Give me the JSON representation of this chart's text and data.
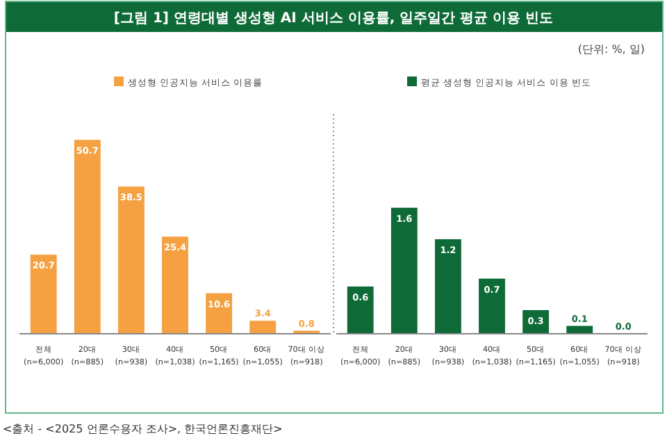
{
  "chart_data": [
    {
      "type": "bar",
      "title": "[그림 1] 연령대별 생성형 AI 서비스 이용률, 일주일간 평균 이용 빈도",
      "categories": [
        "전체\n(n=6,000)",
        "20대\n(n=885)",
        "30대\n(n=938)",
        "40대\n(n=1,038)",
        "50대\n(n=1,165)",
        "60대\n(n=1,055)",
        "70대 이상\n(n=918)"
      ],
      "series": [
        {
          "name": "생성형 인공지능 서비스 이용률",
          "color": "#f5a142",
          "values": [
            20.7,
            50.7,
            38.5,
            25.4,
            10.6,
            3.4,
            0.8
          ]
        }
      ],
      "data_labels": true,
      "legend": "top",
      "annotations": [
        "<출처 - <2025 언론수용자 조사>, 한국언론진흥재단>"
      ]
    },
    {
      "type": "bar",
      "categories": [
        "전체\n(n=6,000)",
        "20대\n(n=885)",
        "30대\n(n=938)",
        "40대\n(n=1,038)",
        "50대\n(n=1,165)",
        "60대\n(n=1,055)",
        "70대 이상\n(n=918)"
      ],
      "series": [
        {
          "name": "평균 생성형 인공지능 서비스 이용 빈도",
          "color": "#0e6b37",
          "values": [
            0.6,
            1.6,
            1.2,
            0.7,
            0.3,
            0.1,
            0.0
          ],
          "value_labels": [
            "0.6",
            "1.6",
            "1.2",
            "0.7",
            "0.3",
            "0.1",
            "0.0"
          ]
        }
      ],
      "legend": "top",
      "annotations": [
        "(단위: %, 일)"
      ]
    }
  ]
}
